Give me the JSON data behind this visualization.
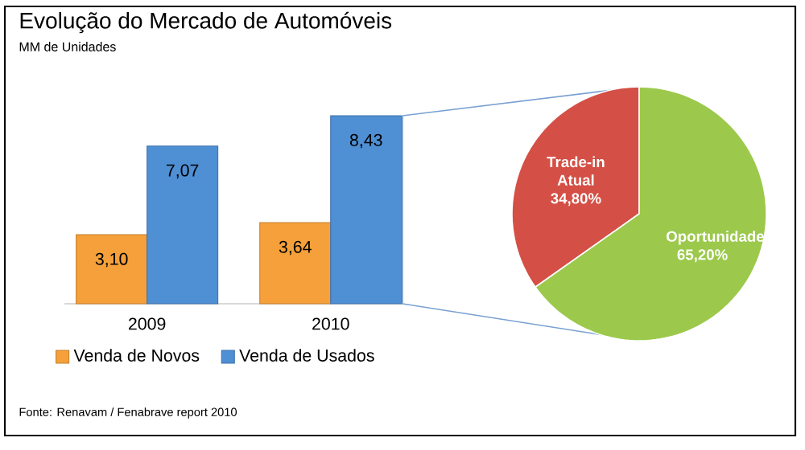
{
  "chart_data": [
    {
      "type": "bar",
      "title": "Evolução do Mercado de Automóveis",
      "subtitle": "MM de Unidades",
      "categories": [
        "2009",
        "2010"
      ],
      "series": [
        {
          "name": "Venda de Novos",
          "color": "#f5a03a",
          "values": [
            3.1,
            3.64
          ],
          "value_labels": [
            "3,10",
            "3,64"
          ]
        },
        {
          "name": "Venda de Usados",
          "color": "#4f8fd4",
          "values": [
            7.07,
            8.43
          ],
          "value_labels": [
            "7,07",
            "8,43"
          ]
        }
      ],
      "legend": "bottom",
      "annotations": [
        "Fonte: Renavam / Fenabrave report 2010"
      ]
    },
    {
      "type": "pie",
      "categories": [
        "Trade-in Atual",
        "Oportunidade"
      ],
      "values": [
        34.8,
        65.2
      ],
      "value_labels": [
        "34,80%",
        "65,20%"
      ],
      "colors": [
        "#d44f45",
        "#9cc94c"
      ]
    }
  ]
}
